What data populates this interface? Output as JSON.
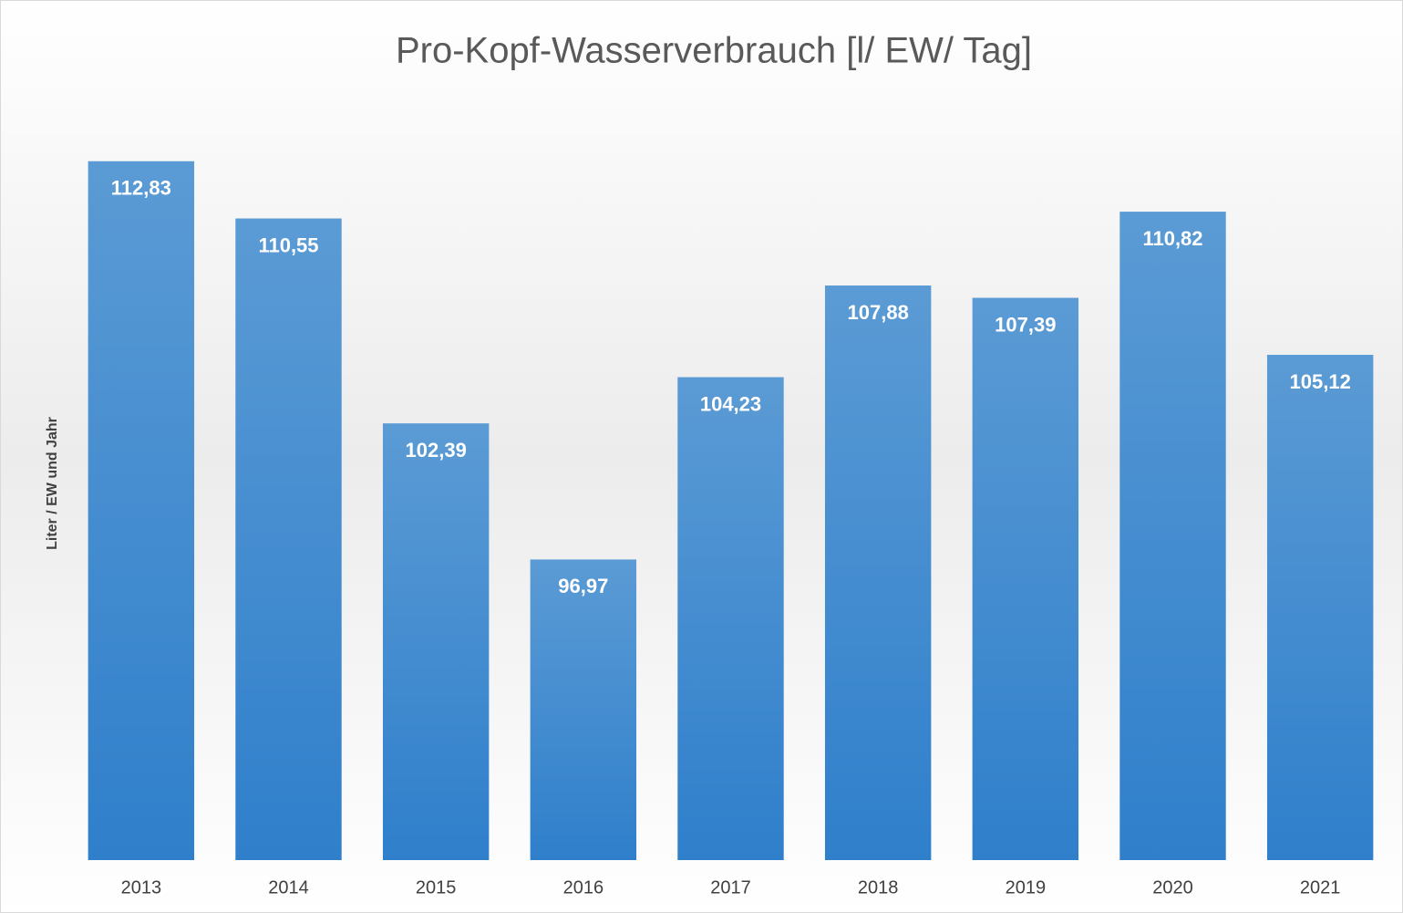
{
  "chart_data": {
    "type": "bar",
    "title": "Pro-Kopf-Wasserverbrauch [l/ EW/ Tag]",
    "y_label": "Liter / EW und Jahr",
    "categories": [
      "2013",
      "2014",
      "2015",
      "2016",
      "2017",
      "2018",
      "2019",
      "2020",
      "2021"
    ],
    "values": [
      112.83,
      110.55,
      102.39,
      96.97,
      104.23,
      107.88,
      107.39,
      110.82,
      105.12
    ],
    "value_labels": [
      "112,83",
      "110,55",
      "102,39",
      "96,97",
      "104,23",
      "107,88",
      "107,39",
      "110,82",
      "105,12"
    ],
    "color": "#5b9bd5",
    "ylim": [
      85,
      115
    ]
  }
}
